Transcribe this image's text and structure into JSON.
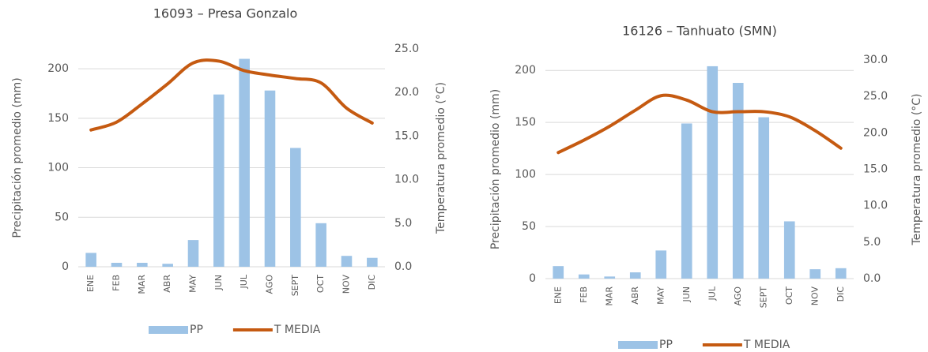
{
  "chart_data": [
    {
      "type": "bar",
      "title": "16093 – Presa Gonzalo",
      "y_label": "Precipitación promedio (mm)",
      "y2_label": "Temperatura promedio (°C)",
      "categories": [
        "ENE",
        "FEB",
        "MAR",
        "ABR",
        "MAY",
        "JUN",
        "JUL",
        "AGO",
        "SEPT",
        "OCT",
        "NOV",
        "DIC"
      ],
      "series": [
        {
          "name": "PP",
          "type": "bar",
          "color": "#9dc3e6",
          "values": [
            14,
            4,
            4,
            3,
            27,
            174,
            210,
            178,
            120,
            44,
            11,
            9
          ]
        },
        {
          "name": "T MEDIA",
          "type": "line",
          "axis": "y2",
          "color": "#c55a11",
          "values": [
            15.7,
            16.6,
            18.7,
            21.0,
            23.4,
            23.6,
            22.5,
            22.0,
            21.6,
            21.1,
            18.2,
            16.5
          ]
        }
      ],
      "ylim": [
        0,
        220
      ],
      "yticks": [
        0,
        50,
        100,
        150,
        200
      ],
      "y2lim": [
        0,
        25
      ],
      "y2ticks": [
        {
          "value": 0,
          "label": "0.0"
        },
        {
          "value": 5,
          "label": "5.0"
        },
        {
          "value": 10,
          "label": "10.0"
        },
        {
          "value": 15,
          "label": "15.0"
        },
        {
          "value": 20,
          "label": "20.0"
        },
        {
          "value": 25,
          "label": "25.0"
        }
      ],
      "grid": true,
      "legend": "bottom"
    },
    {
      "type": "bar",
      "title": "16126 – Tanhuato (SMN)",
      "y_label": "Precipitación promedio (mm)",
      "y2_label": "Temperatura promedio (°C)",
      "categories": [
        "ENE",
        "FEB",
        "MAR",
        "ABR",
        "MAY",
        "JUN",
        "JUL",
        "AGO",
        "SEPT",
        "OCT",
        "NOV",
        "DIC"
      ],
      "series": [
        {
          "name": "PP",
          "type": "bar",
          "color": "#9dc3e6",
          "values": [
            12,
            4,
            2,
            6,
            27,
            149,
            204,
            188,
            155,
            55,
            9,
            10
          ]
        },
        {
          "name": "T MEDIA",
          "type": "line",
          "axis": "y2",
          "color": "#c55a11",
          "values": [
            17.3,
            19.0,
            20.9,
            23.1,
            25.1,
            24.5,
            22.9,
            22.9,
            22.9,
            22.2,
            20.3,
            17.9
          ]
        }
      ],
      "ylim": [
        0,
        210
      ],
      "yticks": [
        0,
        50,
        100,
        150,
        200
      ],
      "y2lim": [
        0,
        30
      ],
      "y2ticks": [
        {
          "value": 0,
          "label": "0.0"
        },
        {
          "value": 5,
          "label": "5.0"
        },
        {
          "value": 10,
          "label": "10.0"
        },
        {
          "value": 15,
          "label": "15.0"
        },
        {
          "value": 20,
          "label": "20.0"
        },
        {
          "value": 25,
          "label": "25.0"
        },
        {
          "value": 30,
          "label": "30.0"
        }
      ],
      "grid": true,
      "legend": "bottom"
    }
  ]
}
